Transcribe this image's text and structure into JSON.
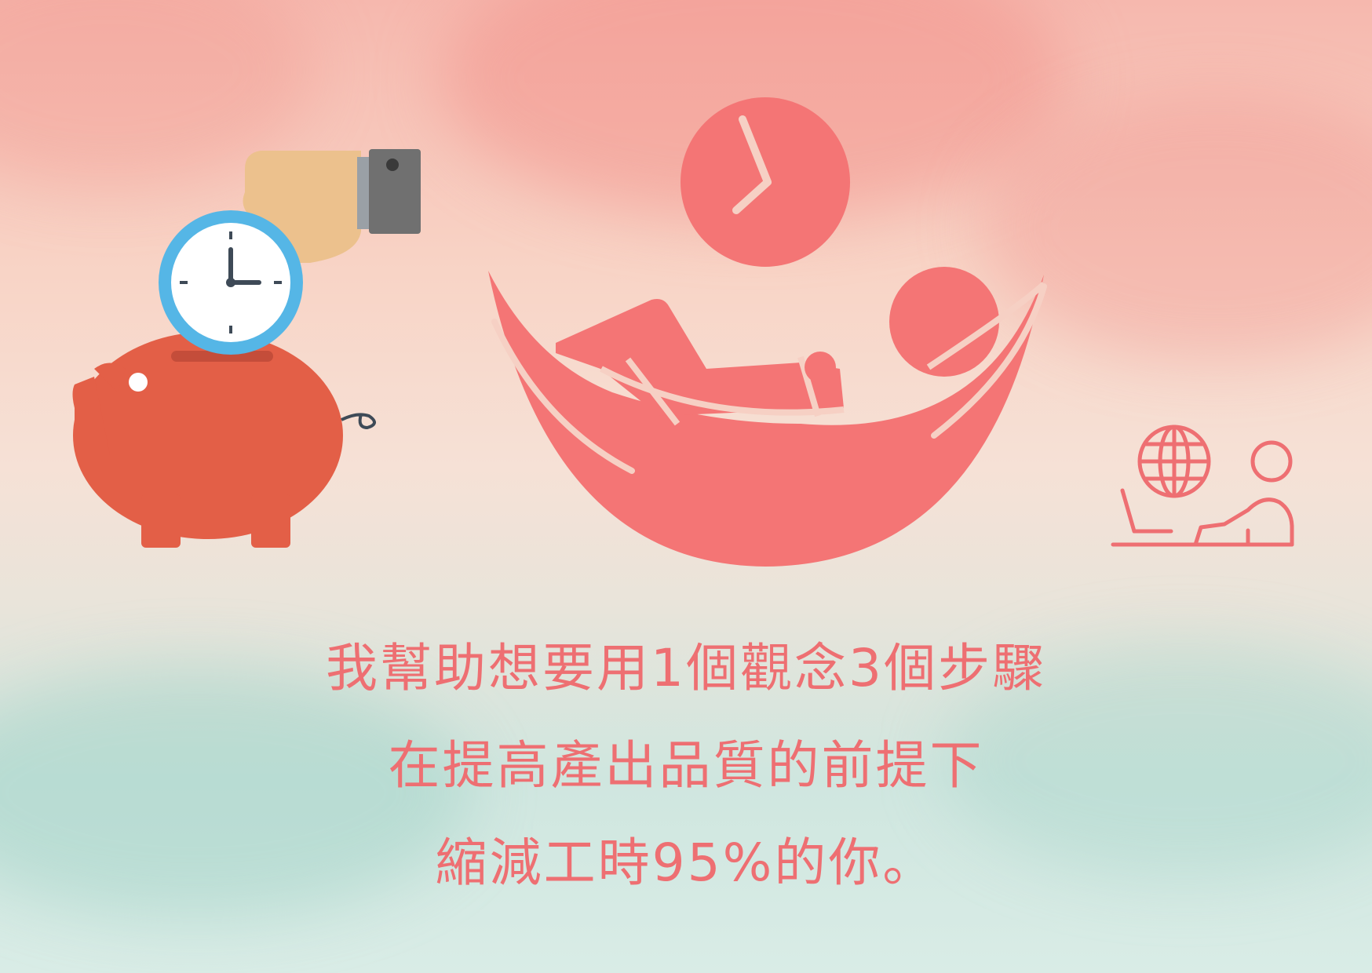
{
  "lines": [
    "我幫助想要用1個觀念3個步驟",
    "在提高產出品質的前提下",
    "縮減工時95%的你。"
  ],
  "colors": {
    "text": "#ee6f72",
    "hammock": "#f47575",
    "piggy": "#e35f47",
    "clock_ring": "#55b6e6",
    "hand": "#ecc18d",
    "sleeve": "#7a7a7a"
  },
  "icons": [
    "hand-icon",
    "stopwatch-icon",
    "piggy-bank-icon",
    "clock-icon",
    "hammock-person-icon",
    "globe-icon",
    "reclining-person-icon"
  ]
}
